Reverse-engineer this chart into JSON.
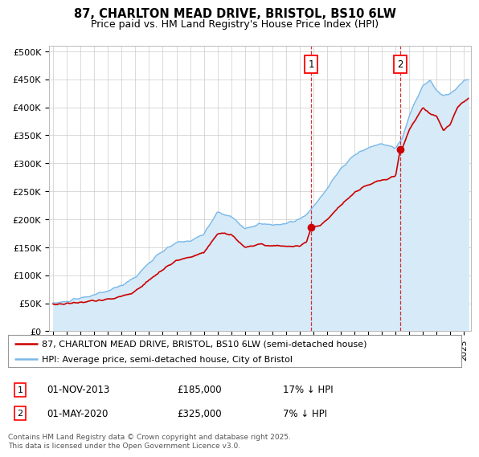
{
  "title": "87, CHARLTON MEAD DRIVE, BRISTOL, BS10 6LW",
  "subtitle": "Price paid vs. HM Land Registry's House Price Index (HPI)",
  "ylim": [
    0,
    510000
  ],
  "yticks": [
    0,
    50000,
    100000,
    150000,
    200000,
    250000,
    300000,
    350000,
    400000,
    450000,
    500000
  ],
  "ytick_labels": [
    "£0",
    "£50K",
    "£100K",
    "£150K",
    "£200K",
    "£250K",
    "£300K",
    "£350K",
    "£400K",
    "£450K",
    "£500K"
  ],
  "xlim_start": 1994.7,
  "xlim_end": 2025.5,
  "hpi_color": "#7ab8e8",
  "hpi_fill_color": "#d6eaf8",
  "price_color": "#cc0000",
  "purchase1_date": 2013.83,
  "purchase1_price": 185000,
  "purchase2_date": 2020.33,
  "purchase2_price": 325000,
  "legend_line1": "87, CHARLTON MEAD DRIVE, BRISTOL, BS10 6LW (semi-detached house)",
  "legend_line2": "HPI: Average price, semi-detached house, City of Bristol",
  "footer": "Contains HM Land Registry data © Crown copyright and database right 2025.\nThis data is licensed under the Open Government Licence v3.0.",
  "plot_bg_color": "#ffffff",
  "grid_color": "#cccccc",
  "hpi_anchors": [
    [
      1995,
      50000
    ],
    [
      1996,
      53000
    ],
    [
      1997,
      59000
    ],
    [
      1998,
      65000
    ],
    [
      1999,
      72000
    ],
    [
      2000,
      82000
    ],
    [
      2001,
      97000
    ],
    [
      2002,
      122000
    ],
    [
      2003,
      143000
    ],
    [
      2004,
      158000
    ],
    [
      2005,
      162000
    ],
    [
      2006,
      173000
    ],
    [
      2007,
      213000
    ],
    [
      2008,
      205000
    ],
    [
      2009,
      183000
    ],
    [
      2010,
      192000
    ],
    [
      2011,
      190000
    ],
    [
      2012,
      192000
    ],
    [
      2013,
      200000
    ],
    [
      2013.5,
      208000
    ],
    [
      2014,
      222000
    ],
    [
      2015,
      255000
    ],
    [
      2016,
      290000
    ],
    [
      2017,
      315000
    ],
    [
      2018,
      328000
    ],
    [
      2019,
      335000
    ],
    [
      2020,
      328000
    ],
    [
      2020.5,
      345000
    ],
    [
      2021,
      385000
    ],
    [
      2022,
      440000
    ],
    [
      2022.5,
      448000
    ],
    [
      2023,
      430000
    ],
    [
      2023.5,
      420000
    ],
    [
      2024,
      425000
    ],
    [
      2024.5,
      435000
    ],
    [
      2025,
      448000
    ],
    [
      2025.3,
      450000
    ]
  ],
  "price_anchors": [
    [
      1995,
      48000
    ],
    [
      1996,
      49500
    ],
    [
      1997,
      52000
    ],
    [
      1998,
      54000
    ],
    [
      1999,
      57000
    ],
    [
      2000,
      62000
    ],
    [
      2001,
      72000
    ],
    [
      2002,
      91000
    ],
    [
      2003,
      110000
    ],
    [
      2004,
      126000
    ],
    [
      2005,
      132000
    ],
    [
      2006,
      140000
    ],
    [
      2007,
      175000
    ],
    [
      2008,
      173000
    ],
    [
      2009,
      150000
    ],
    [
      2010,
      155000
    ],
    [
      2011,
      153000
    ],
    [
      2012,
      152000
    ],
    [
      2013,
      152000
    ],
    [
      2013.5,
      158000
    ],
    [
      2013.83,
      185000
    ],
    [
      2014,
      185000
    ],
    [
      2014.5,
      188000
    ],
    [
      2015,
      200000
    ],
    [
      2016,
      225000
    ],
    [
      2017,
      248000
    ],
    [
      2018,
      262000
    ],
    [
      2019,
      270000
    ],
    [
      2019.5,
      272000
    ],
    [
      2020,
      278000
    ],
    [
      2020.33,
      325000
    ],
    [
      2020.5,
      328000
    ],
    [
      2021,
      360000
    ],
    [
      2022,
      400000
    ],
    [
      2022.5,
      388000
    ],
    [
      2023,
      385000
    ],
    [
      2023.5,
      358000
    ],
    [
      2024,
      370000
    ],
    [
      2024.5,
      400000
    ],
    [
      2025,
      410000
    ],
    [
      2025.3,
      415000
    ]
  ]
}
